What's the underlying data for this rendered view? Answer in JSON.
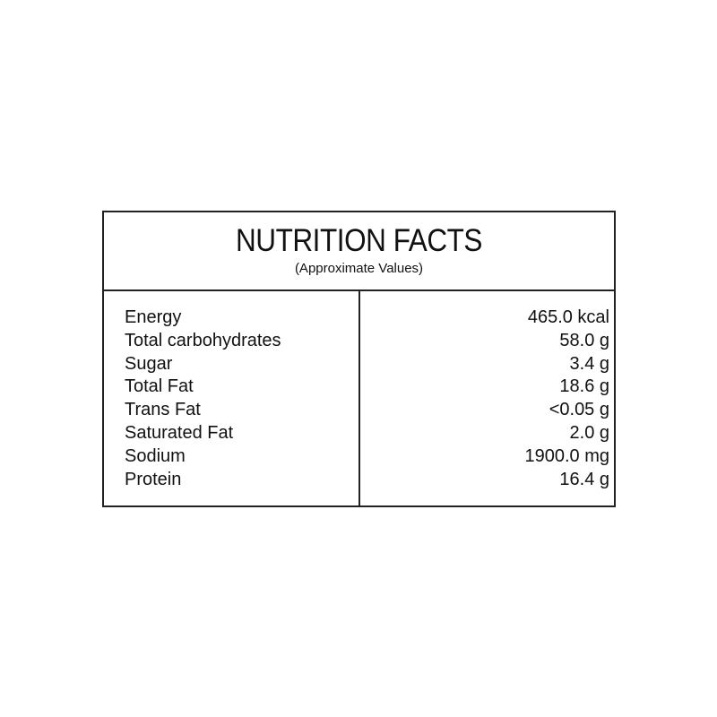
{
  "title": "NUTRITION FACTS",
  "subtitle": "(Approximate Values)",
  "rows": [
    {
      "label": "Energy",
      "value": "465.0 kcal"
    },
    {
      "label": "Total carbohydrates",
      "value": "58.0 g"
    },
    {
      "label": "Sugar",
      "value": "3.4 g"
    },
    {
      "label": "Total Fat",
      "value": "18.6 g"
    },
    {
      "label": "Trans Fat",
      "value": "<0.05 g"
    },
    {
      "label": "Saturated Fat",
      "value": "2.0 g"
    },
    {
      "label": "Sodium",
      "value": "1900.0 mg"
    },
    {
      "label": "Protein",
      "value": "16.4 g"
    }
  ]
}
